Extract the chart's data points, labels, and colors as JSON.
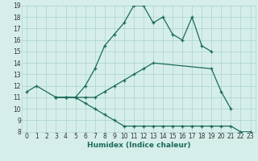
{
  "title": "",
  "xlabel": "Humidex (Indice chaleur)",
  "xlim": [
    -0.5,
    23.5
  ],
  "ylim": [
    8,
    19
  ],
  "xticks": [
    0,
    1,
    2,
    3,
    4,
    5,
    6,
    7,
    8,
    9,
    10,
    11,
    12,
    13,
    14,
    15,
    16,
    17,
    18,
    19,
    20,
    21,
    22,
    23
  ],
  "yticks": [
    8,
    9,
    10,
    11,
    12,
    13,
    14,
    15,
    16,
    17,
    18,
    19
  ],
  "bg_color": "#d6eeea",
  "grid_color": "#b0d8d0",
  "line_color": "#1a6b5a",
  "lines": [
    {
      "x": [
        0,
        1,
        3,
        4,
        5,
        6,
        7,
        8,
        9,
        10,
        11,
        12,
        13,
        14,
        15,
        16,
        17,
        18,
        19
      ],
      "y": [
        11.5,
        12,
        11,
        11,
        11,
        12,
        13.5,
        15.5,
        16.5,
        17.5,
        19,
        19,
        17.5,
        18,
        16.5,
        16,
        18,
        15.5,
        15
      ]
    },
    {
      "x": [
        3,
        4,
        5,
        6,
        7,
        8,
        9,
        10,
        11,
        12,
        13,
        19,
        20,
        21
      ],
      "y": [
        11,
        11,
        11,
        11,
        11,
        11.5,
        12,
        12.5,
        13,
        13.5,
        14,
        13.5,
        11.5,
        10
      ]
    },
    {
      "x": [
        3,
        4,
        5,
        6,
        7,
        8,
        9,
        10,
        11,
        12,
        13,
        14,
        15,
        16,
        17,
        18,
        19,
        20,
        21,
        22,
        23
      ],
      "y": [
        11,
        11,
        11,
        10.5,
        10,
        9.5,
        9,
        8.5,
        8.5,
        8.5,
        8.5,
        8.5,
        8.5,
        8.5,
        8.5,
        8.5,
        8.5,
        8.5,
        8.5,
        8,
        8
      ]
    }
  ]
}
